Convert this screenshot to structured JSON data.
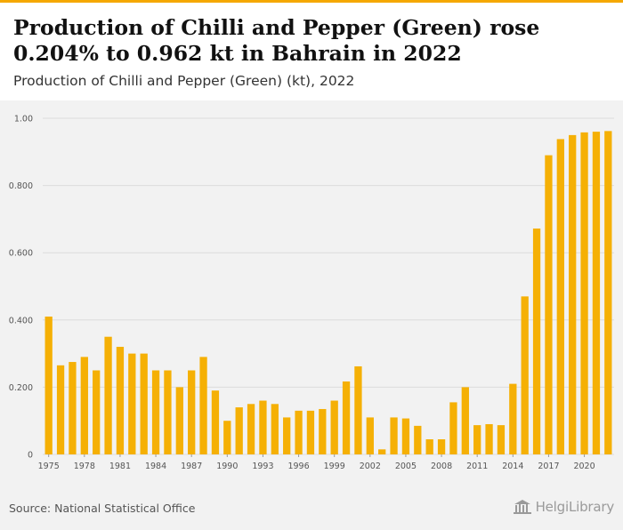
{
  "colors": {
    "accent": "#f5a800",
    "bar": "#f5b005",
    "grid": "#dcdcdc",
    "axis_text": "#555555"
  },
  "header": {
    "title": "Production of Chilli and Pepper (Green) rose 0.204% to 0.962 kt in Bahrain in 2022",
    "subtitle": "Production of Chilli and Pepper (Green) (kt), 2022"
  },
  "footer": {
    "source": "Source: National Statistical Office",
    "logo_text": "HelgiLibrary",
    "logo_icon": "library-icon"
  },
  "chart_data": {
    "type": "bar",
    "title": "Production of Chilli and Pepper (Green) rose 0.204% to 0.962 kt in Bahrain in 2022",
    "subtitle": "Production of Chilli and Pepper (Green) (kt), 2022",
    "xlabel": "",
    "ylabel": "",
    "ylim": [
      0,
      1.0
    ],
    "yticks": [
      0,
      0.2,
      0.4,
      0.6,
      0.8,
      1.0
    ],
    "ytick_labels": [
      "0",
      "0.200",
      "0.400",
      "0.600",
      "0.800",
      "1.00"
    ],
    "grid": true,
    "categories": [
      1975,
      1976,
      1977,
      1978,
      1979,
      1980,
      1981,
      1982,
      1983,
      1984,
      1985,
      1986,
      1987,
      1988,
      1989,
      1990,
      1991,
      1992,
      1993,
      1994,
      1995,
      1996,
      1997,
      1998,
      1999,
      2000,
      2001,
      2002,
      2003,
      2004,
      2005,
      2006,
      2007,
      2008,
      2009,
      2010,
      2011,
      2012,
      2013,
      2014,
      2015,
      2016,
      2017,
      2018,
      2019,
      2020,
      2021,
      2022
    ],
    "xtick_labels": [
      "1975",
      "1978",
      "1981",
      "1984",
      "1987",
      "1990",
      "1993",
      "1996",
      "1999",
      "2002",
      "2005",
      "2008",
      "2011",
      "2014",
      "2017",
      "2020"
    ],
    "values": [
      0.41,
      0.265,
      0.275,
      0.29,
      0.25,
      0.35,
      0.32,
      0.3,
      0.3,
      0.25,
      0.25,
      0.2,
      0.25,
      0.29,
      0.19,
      0.1,
      0.14,
      0.15,
      0.16,
      0.15,
      0.11,
      0.13,
      0.13,
      0.135,
      0.16,
      0.217,
      0.262,
      0.11,
      0.015,
      0.11,
      0.107,
      0.085,
      0.045,
      0.045,
      0.155,
      0.2,
      0.087,
      0.09,
      0.087,
      0.21,
      0.47,
      0.672,
      0.89,
      0.938,
      0.95,
      0.958,
      0.96,
      0.962
    ]
  }
}
